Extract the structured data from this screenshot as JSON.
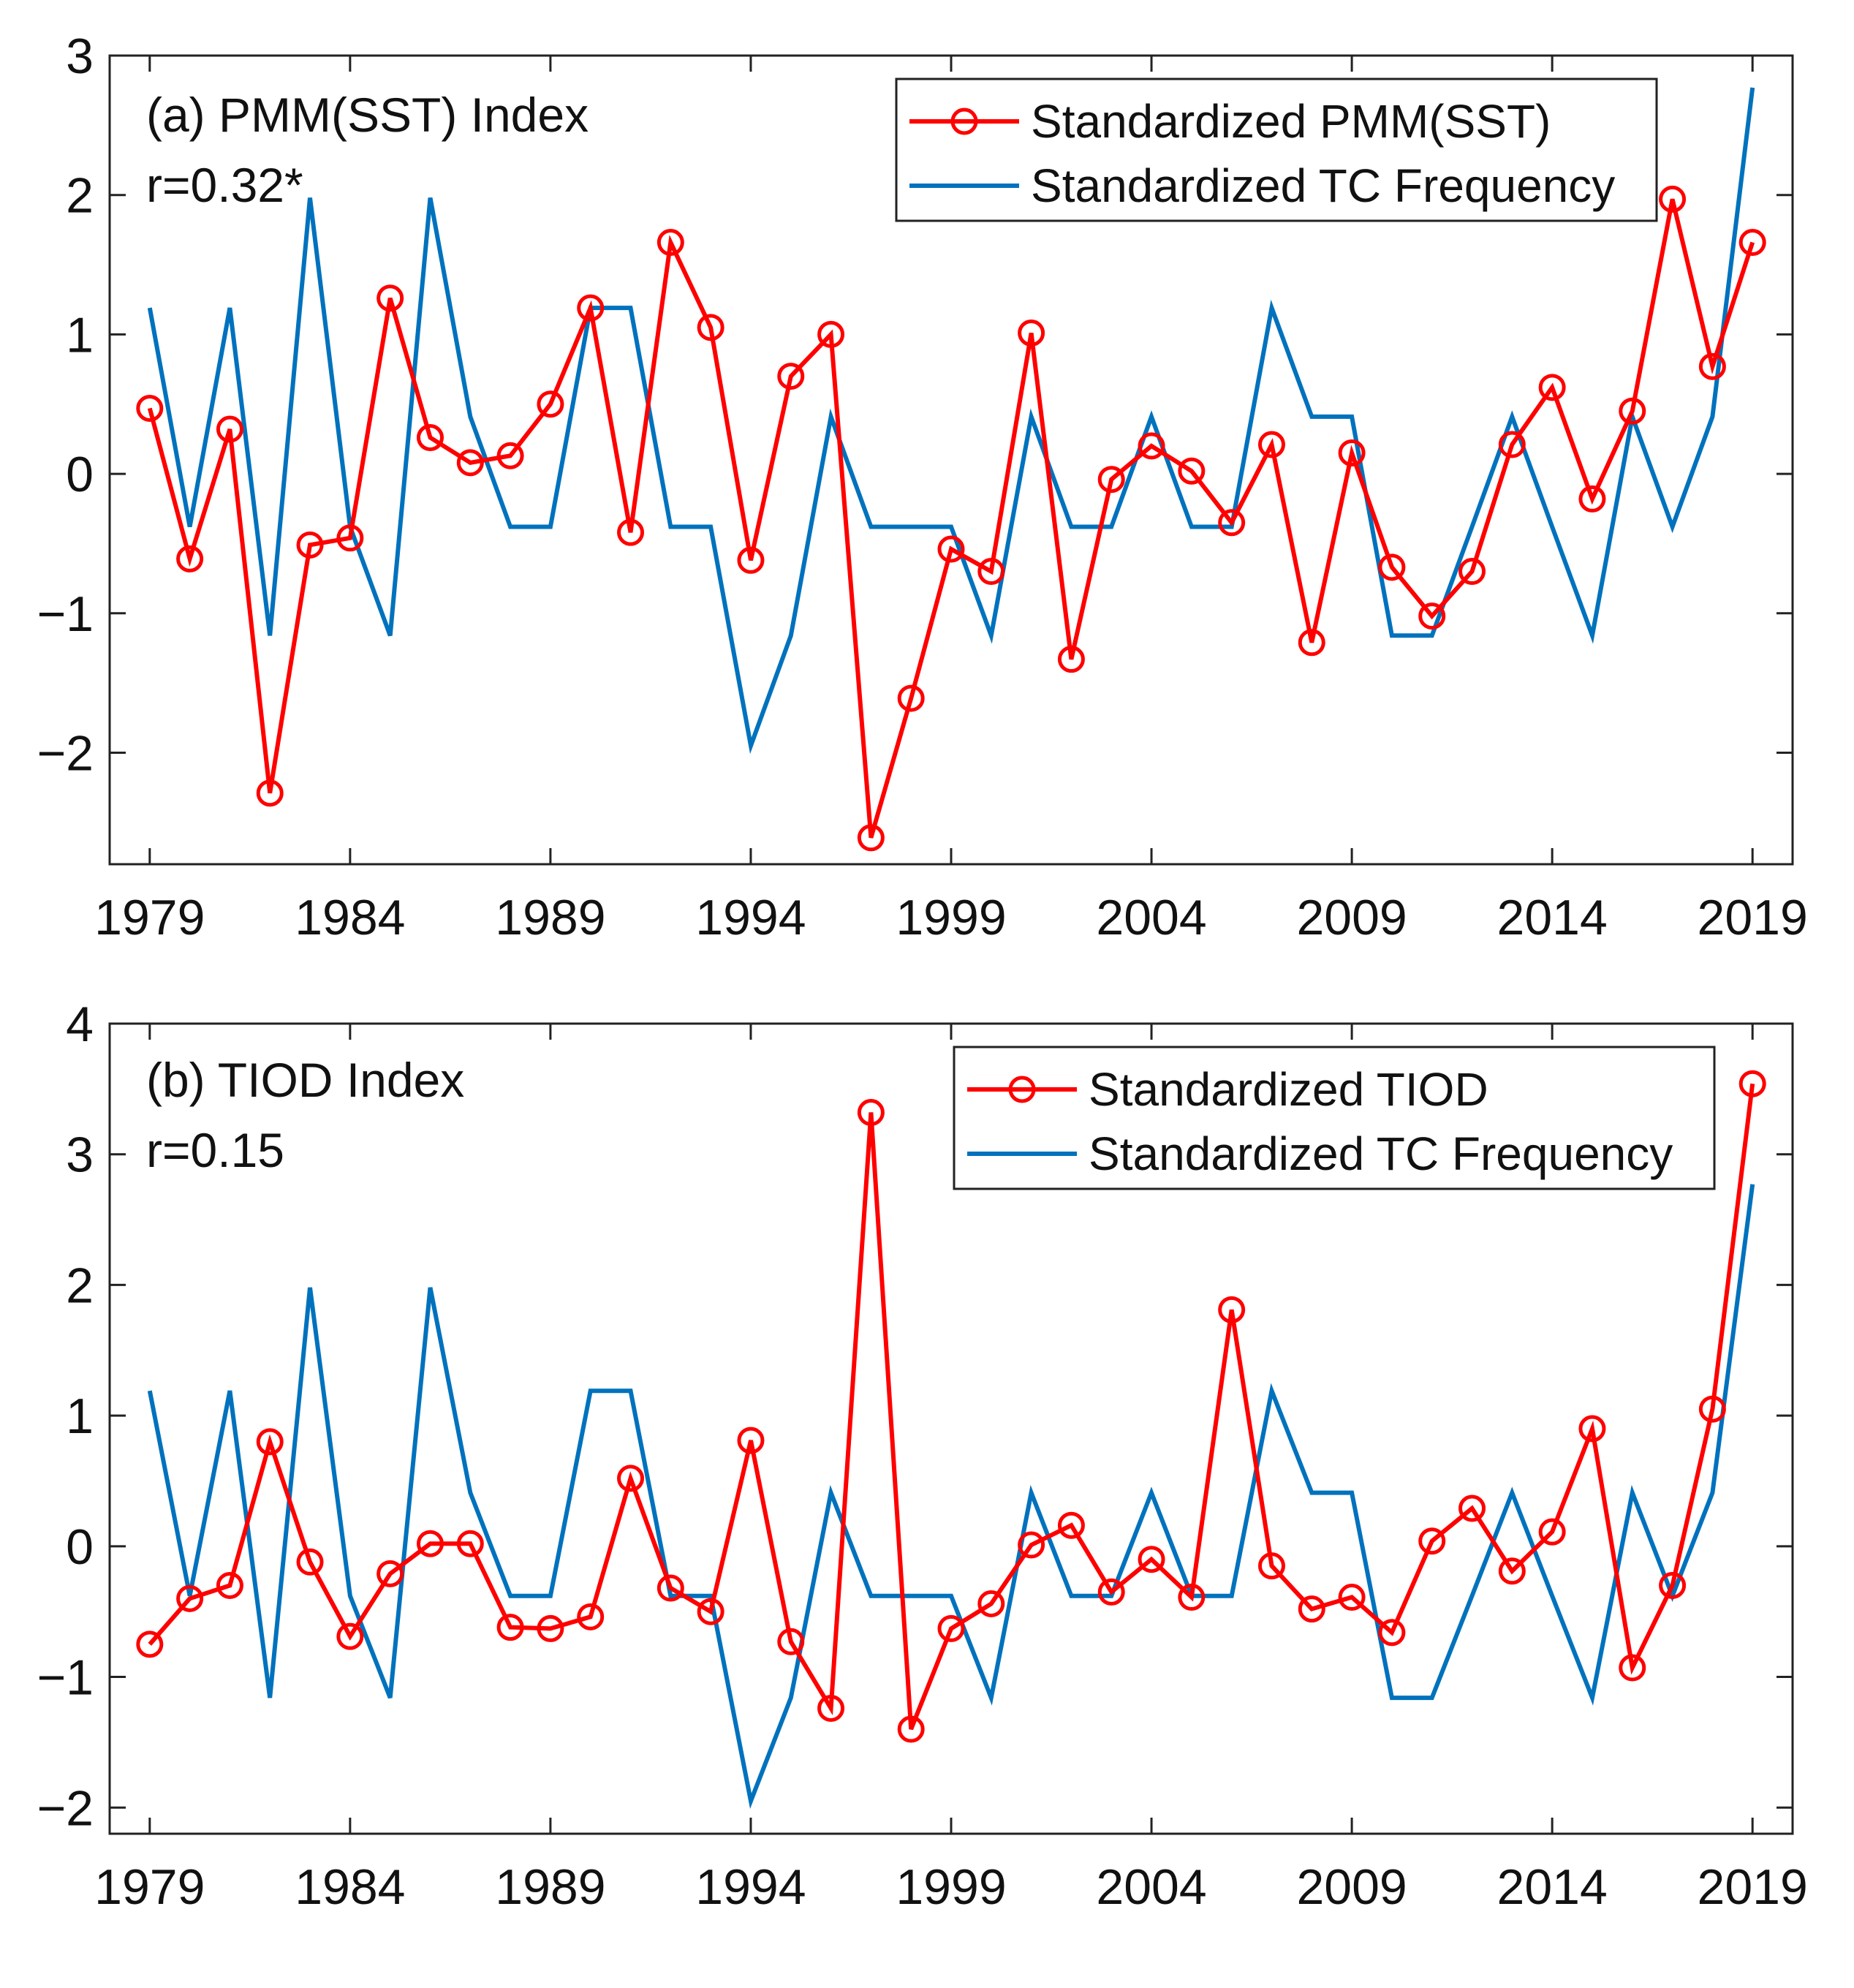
{
  "chart_data": [
    {
      "type": "line",
      "title": "(a) PMM(SST) Index",
      "annotation": "r=0.32*",
      "xlabel": "",
      "ylabel": "",
      "xlim": [
        1978,
        2020
      ],
      "ylim": [
        -2.8,
        3
      ],
      "xticks": [
        1979,
        1984,
        1989,
        1994,
        1999,
        2004,
        2009,
        2014,
        2019
      ],
      "yticks": [
        -2,
        -1,
        0,
        1,
        2,
        3
      ],
      "ytick_labels": [
        "−2",
        "−1",
        "0",
        "1",
        "2",
        "3"
      ],
      "grid": false,
      "legend": "top-right",
      "x": [
        1979,
        1980,
        1981,
        1982,
        1983,
        1984,
        1985,
        1986,
        1987,
        1988,
        1989,
        1990,
        1991,
        1992,
        1993,
        1994,
        1995,
        1996,
        1997,
        1998,
        1999,
        2000,
        2001,
        2002,
        2003,
        2004,
        2005,
        2006,
        2007,
        2008,
        2009,
        2010,
        2011,
        2012,
        2013,
        2014,
        2015,
        2016,
        2017,
        2018,
        2019
      ],
      "series": [
        {
          "name": "Standardized PMM(SST)",
          "color": "#ff0000",
          "marker": "circle",
          "values": [
            0.47,
            -0.61,
            0.32,
            -2.29,
            -0.51,
            -0.46,
            1.26,
            0.26,
            0.08,
            0.13,
            0.5,
            1.19,
            -0.42,
            1.66,
            1.05,
            -0.62,
            0.7,
            1.0,
            -2.61,
            -1.61,
            -0.54,
            -0.7,
            1.01,
            -1.33,
            -0.04,
            0.2,
            0.02,
            -0.35,
            0.21,
            -1.21,
            0.15,
            -0.67,
            -1.02,
            -0.7,
            0.21,
            0.62,
            -0.18,
            0.45,
            1.97,
            0.77,
            1.66
          ]
        },
        {
          "name": "Standardized TC Frequency",
          "color": "#0072bd",
          "marker": "none",
          "values": [
            1.19,
            -0.38,
            1.19,
            -1.16,
            1.98,
            -0.38,
            -1.16,
            1.98,
            0.41,
            -0.38,
            -0.38,
            1.19,
            1.19,
            -0.38,
            -0.38,
            -1.95,
            -1.16,
            0.41,
            -0.38,
            -0.38,
            -0.38,
            -1.16,
            0.41,
            -0.38,
            -0.38,
            0.41,
            -0.38,
            -0.38,
            1.19,
            0.41,
            0.41,
            -1.16,
            -1.16,
            -0.38,
            0.41,
            -0.38,
            -1.16,
            0.41,
            -0.38,
            0.41,
            2.77
          ]
        }
      ]
    },
    {
      "type": "line",
      "title": "(b) TIOD Index",
      "annotation": "r=0.15",
      "xlabel": "",
      "ylabel": "",
      "xlim": [
        1978,
        2020
      ],
      "ylim": [
        -2.2,
        4
      ],
      "xticks": [
        1979,
        1984,
        1989,
        1994,
        1999,
        2004,
        2009,
        2014,
        2019
      ],
      "yticks": [
        -2,
        -1,
        0,
        1,
        2,
        3,
        4
      ],
      "ytick_labels": [
        "−2",
        "−1",
        "0",
        "1",
        "2",
        "3",
        "4"
      ],
      "grid": false,
      "legend": "top-right",
      "x": [
        1979,
        1980,
        1981,
        1982,
        1983,
        1984,
        1985,
        1986,
        1987,
        1988,
        1989,
        1990,
        1991,
        1992,
        1993,
        1994,
        1995,
        1996,
        1997,
        1998,
        1999,
        2000,
        2001,
        2002,
        2003,
        2004,
        2005,
        2006,
        2007,
        2008,
        2009,
        2010,
        2011,
        2012,
        2013,
        2014,
        2015,
        2016,
        2017,
        2018,
        2019
      ],
      "series": [
        {
          "name": "Standardized TIOD",
          "color": "#ff0000",
          "marker": "circle",
          "values": [
            -0.75,
            -0.4,
            -0.3,
            0.8,
            -0.12,
            -0.69,
            -0.21,
            0.02,
            0.02,
            -0.62,
            -0.63,
            -0.54,
            0.52,
            -0.32,
            -0.5,
            0.81,
            -0.73,
            -1.24,
            3.32,
            -1.4,
            -0.63,
            -0.44,
            0.01,
            0.16,
            -0.35,
            -0.1,
            -0.39,
            1.81,
            -0.15,
            -0.48,
            -0.39,
            -0.66,
            0.04,
            0.29,
            -0.19,
            0.11,
            0.9,
            -0.93,
            -0.3,
            1.05,
            3.54
          ]
        },
        {
          "name": "Standardized TC Frequency",
          "color": "#0072bd",
          "marker": "none",
          "values": [
            1.19,
            -0.38,
            1.19,
            -1.16,
            1.98,
            -0.38,
            -1.16,
            1.98,
            0.41,
            -0.38,
            -0.38,
            1.19,
            1.19,
            -0.38,
            -0.38,
            -1.95,
            -1.16,
            0.41,
            -0.38,
            -0.38,
            -0.38,
            -1.16,
            0.41,
            -0.38,
            -0.38,
            0.41,
            -0.38,
            -0.38,
            1.19,
            0.41,
            0.41,
            -1.16,
            -1.16,
            -0.38,
            0.41,
            -0.38,
            -1.16,
            0.41,
            -0.38,
            0.41,
            2.77
          ]
        }
      ]
    }
  ]
}
